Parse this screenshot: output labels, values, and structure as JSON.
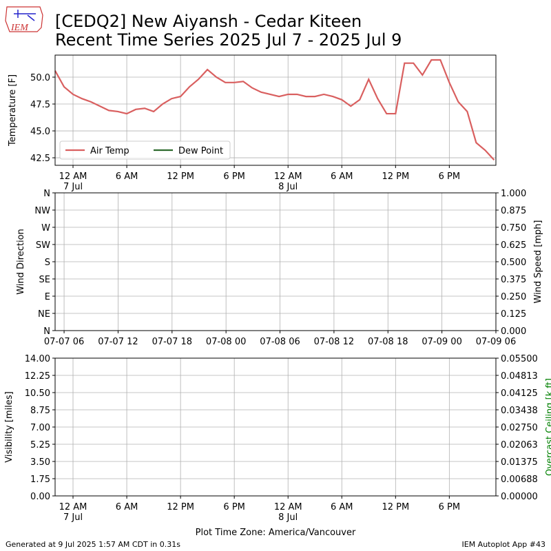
{
  "header": {
    "title": [
      "[CEDQ2] New Aiyansh - Cedar Kiteen",
      "Recent Time Series 2025 Jul 7 - 2025 Jul 9"
    ]
  },
  "footer": {
    "left": "Generated at 9 Jul 2025 1:57 AM CDT in 0.31s",
    "right": "IEM Autoplot App #43"
  },
  "chart_data": [
    {
      "type": "line",
      "ylabel": "Temperature [F]",
      "grid": true,
      "legend": "lower left",
      "x": [
        -2,
        -1,
        0,
        1,
        2,
        3,
        4,
        5,
        6,
        7,
        8,
        9,
        10,
        11,
        12,
        13,
        14,
        15,
        16,
        17,
        18,
        19,
        20,
        21,
        22,
        23,
        24,
        25,
        26,
        27,
        28,
        29,
        30,
        31,
        32,
        33,
        34,
        35,
        36,
        37,
        38,
        39,
        40,
        41,
        42,
        43,
        44,
        45,
        46,
        47
      ],
      "xlim": [
        -2,
        47.2
      ],
      "xticks": [
        {
          "value": 0,
          "label": "12 AM\n7 Jul"
        },
        {
          "value": 6,
          "label": "6 AM"
        },
        {
          "value": 12,
          "label": "12 PM"
        },
        {
          "value": 18,
          "label": "6 PM"
        },
        {
          "value": 24,
          "label": "12 AM\n8 Jul"
        },
        {
          "value": 30,
          "label": "6 AM"
        },
        {
          "value": 36,
          "label": "12 PM"
        },
        {
          "value": 42,
          "label": "6 PM"
        }
      ],
      "ylim": [
        41.8,
        52.05
      ],
      "yticks": [
        42.5,
        {
          "value": 45,
          "label": "45.0"
        },
        47.5,
        {
          "value": 50,
          "label": "50.0"
        }
      ],
      "series": [
        {
          "name": "Air Temp",
          "color": "#d95f5f",
          "values": [
            50.6,
            49.1,
            48.4,
            48.0,
            47.7,
            47.3,
            46.9,
            46.8,
            46.6,
            47.0,
            47.1,
            46.8,
            47.5,
            48.0,
            48.2,
            49.1,
            49.8,
            50.7,
            50.0,
            49.5,
            49.5,
            49.6,
            49.0,
            48.6,
            48.4,
            48.2,
            48.4,
            48.4,
            48.2,
            48.2,
            48.4,
            48.2,
            47.9,
            47.3,
            47.9,
            49.8,
            48.0,
            46.6,
            46.6,
            51.3,
            51.3,
            50.2,
            51.6,
            51.6,
            49.5,
            47.7,
            46.8,
            43.9,
            43.2,
            42.3
          ]
        },
        {
          "name": "Dew Point",
          "color": "#2d6a2d",
          "values": [
            null,
            null,
            null,
            null,
            null,
            null,
            null,
            null,
            null,
            null,
            null,
            null,
            null,
            null,
            null,
            null,
            null,
            null,
            null,
            null,
            null,
            null,
            null,
            null,
            null,
            null,
            null,
            null,
            null,
            null,
            null,
            null,
            null,
            null,
            null,
            null,
            null,
            null,
            null,
            null,
            null,
            null,
            null,
            null,
            null,
            null,
            null,
            null,
            null,
            null
          ]
        }
      ]
    },
    {
      "type": "line",
      "ylabel": "Wind Direction",
      "y2label": "Wind Speed [mph]",
      "grid": true,
      "xlim": [
        5,
        54
      ],
      "xticks": [
        {
          "value": 6,
          "label": "07-07 06"
        },
        {
          "value": 12,
          "label": "07-07 12"
        },
        {
          "value": 18,
          "label": "07-07 18"
        },
        {
          "value": 24,
          "label": "07-08 00"
        },
        {
          "value": 30,
          "label": "07-08 06"
        },
        {
          "value": 36,
          "label": "07-08 12"
        },
        {
          "value": 42,
          "label": "07-08 18"
        },
        {
          "value": 48,
          "label": "07-09 00"
        },
        {
          "value": 54,
          "label": "07-09 06"
        }
      ],
      "ylim": [
        0,
        360
      ],
      "yticks": [
        {
          "value": 0,
          "label": "N"
        },
        {
          "value": 45,
          "label": "NE"
        },
        {
          "value": 90,
          "label": "E"
        },
        {
          "value": 135,
          "label": "SE"
        },
        {
          "value": 180,
          "label": "S"
        },
        {
          "value": 225,
          "label": "SW"
        },
        {
          "value": 270,
          "label": "W"
        },
        {
          "value": 315,
          "label": "NW"
        },
        {
          "value": 360,
          "label": "N"
        }
      ],
      "y2lim": [
        0,
        1
      ],
      "y2ticks": [
        {
          "value": 0,
          "label": "0.000"
        },
        0.125,
        {
          "value": 0.25,
          "label": "0.250"
        },
        0.375,
        {
          "value": 0.5,
          "label": "0.500"
        },
        0.625,
        {
          "value": 0.75,
          "label": "0.750"
        },
        0.875,
        {
          "value": 1,
          "label": "1.000"
        }
      ],
      "series": []
    },
    {
      "type": "line",
      "ylabel": "Visibility [miles]",
      "y2label": "Overcast Ceiling [k ft]",
      "y2label_color": "#008000",
      "xlabel": "Plot Time Zone: America/Vancouver",
      "grid": true,
      "xlim": [
        -2,
        47.2
      ],
      "xticks": [
        {
          "value": 0,
          "label": "12 AM\n7 Jul"
        },
        {
          "value": 6,
          "label": "6 AM"
        },
        {
          "value": 12,
          "label": "12 PM"
        },
        {
          "value": 18,
          "label": "6 PM"
        },
        {
          "value": 24,
          "label": "12 AM\n8 Jul"
        },
        {
          "value": 30,
          "label": "6 AM"
        },
        {
          "value": 36,
          "label": "12 PM"
        },
        {
          "value": 42,
          "label": "6 PM"
        }
      ],
      "ylim": [
        0,
        14
      ],
      "yticks": [
        {
          "value": 0,
          "label": "0.00"
        },
        1.75,
        {
          "value": 3.5,
          "label": "3.50"
        },
        5.25,
        {
          "value": 7,
          "label": "7.00"
        },
        8.75,
        {
          "value": 10.5,
          "label": "10.50"
        },
        12.25,
        {
          "value": 14,
          "label": "14.00"
        }
      ],
      "y2lim": [
        0,
        0.055
      ],
      "y2ticks": [
        {
          "value": 0,
          "label": "0.00000"
        },
        {
          "value": 0.006875,
          "label": "0.00688"
        },
        0.01375,
        {
          "value": 0.020625,
          "label": "0.02063"
        },
        {
          "value": 0.0275,
          "label": "0.02750"
        },
        {
          "value": 0.034375,
          "label": "0.03438"
        },
        0.04125,
        {
          "value": 0.048125,
          "label": "0.04813"
        },
        {
          "value": 0.055,
          "label": "0.05500"
        }
      ],
      "series": []
    }
  ]
}
